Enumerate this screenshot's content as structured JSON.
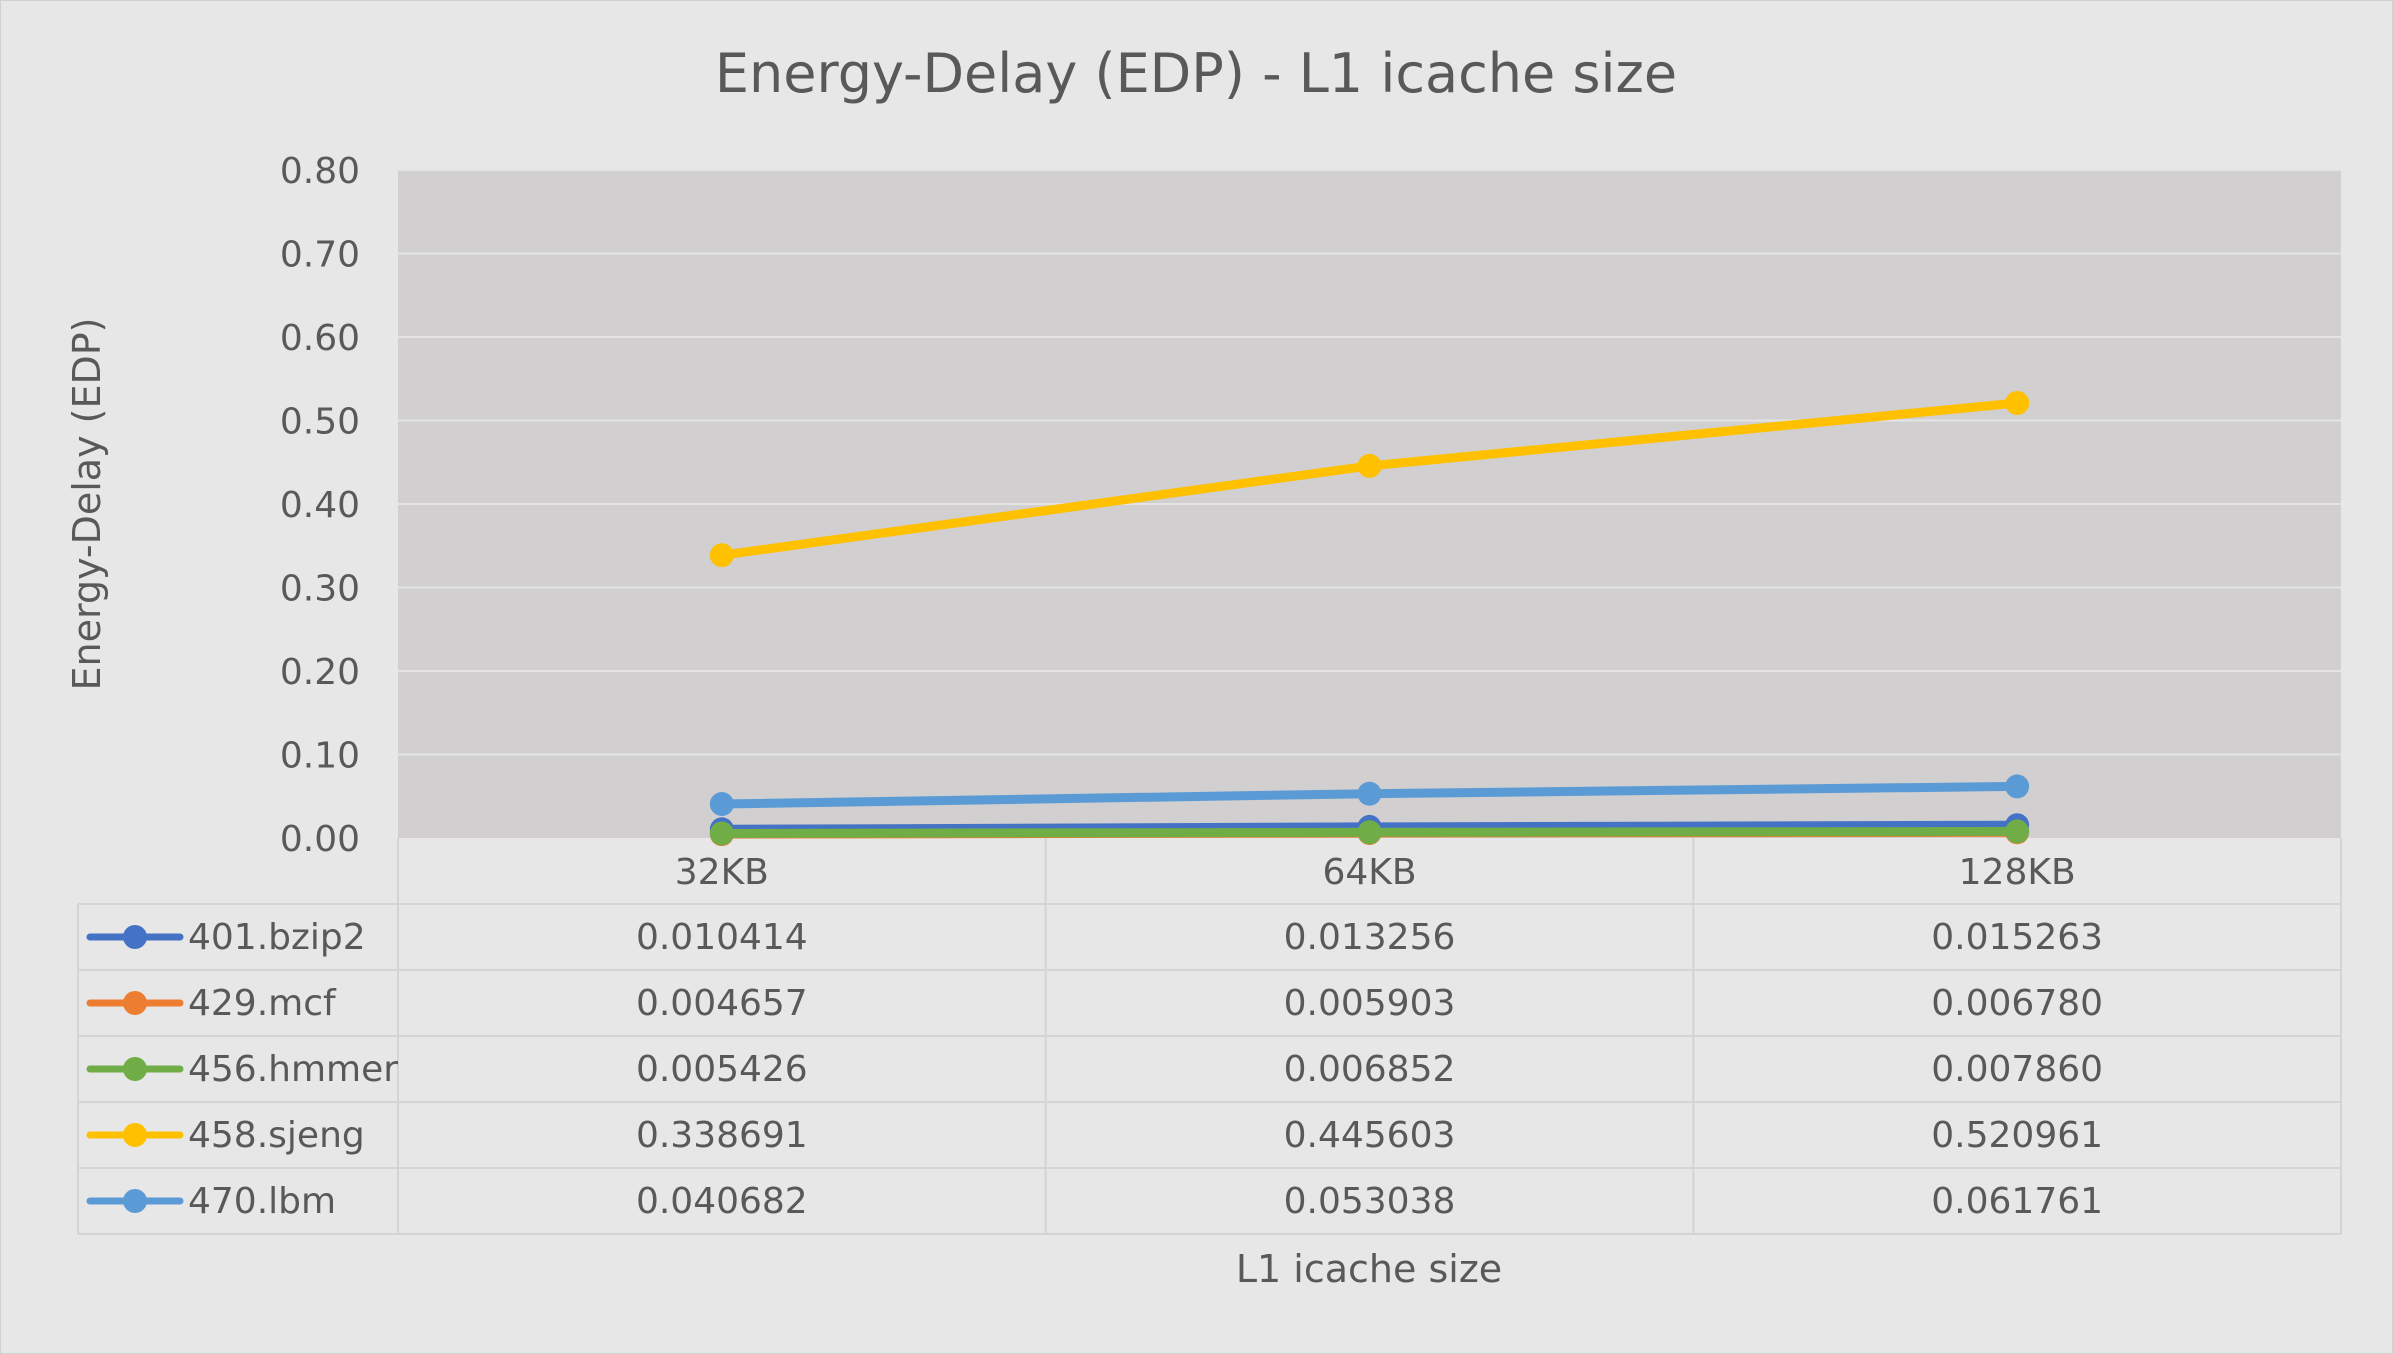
{
  "chart_data": {
    "type": "line",
    "title": "Energy-Delay (EDP) - L1 icache size",
    "xlabel": "L1 icache size",
    "ylabel": "Energy-Delay (EDP)",
    "ylim": [
      0,
      0.8
    ],
    "yticks": [
      "0.00",
      "0.10",
      "0.20",
      "0.30",
      "0.40",
      "0.50",
      "0.60",
      "0.70",
      "0.80"
    ],
    "grid": true,
    "legend_placement": "data-table-left",
    "categories": [
      "32KB",
      "64KB",
      "128KB"
    ],
    "series": [
      {
        "name": "401.bzip2",
        "color": "#4472c4",
        "values": [
          0.010414,
          0.013256,
          0.015263
        ],
        "labels": [
          "0.010414",
          "0.013256",
          "0.015263"
        ]
      },
      {
        "name": "429.mcf",
        "color": "#ed7d31",
        "values": [
          0.004657,
          0.005903,
          0.00678
        ],
        "labels": [
          "0.004657",
          "0.005903",
          "0.006780"
        ]
      },
      {
        "name": "456.hmmer",
        "color": "#70ad47",
        "values": [
          0.005426,
          0.006852,
          0.00786
        ],
        "labels": [
          "0.005426",
          "0.006852",
          "0.007860"
        ]
      },
      {
        "name": "458.sjeng",
        "color": "#ffc000",
        "values": [
          0.338691,
          0.445603,
          0.520961
        ],
        "labels": [
          "0.338691",
          "0.445603",
          "0.520961"
        ]
      },
      {
        "name": "470.lbm",
        "color": "#5b9bd5",
        "values": [
          0.040682,
          0.053038,
          0.061761
        ],
        "labels": [
          "0.040682",
          "0.053038",
          "0.061761"
        ]
      }
    ]
  }
}
